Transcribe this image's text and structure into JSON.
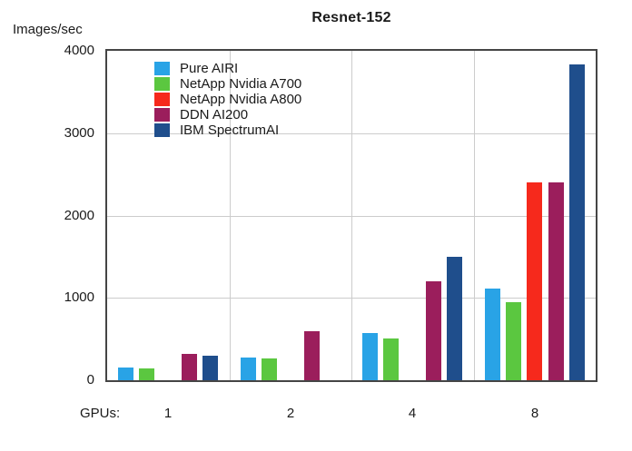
{
  "chart_data": {
    "type": "bar",
    "title": "Resnet-152",
    "ylabel": "Images/sec",
    "xlabel": "GPUs:",
    "categories": [
      "1",
      "2",
      "4",
      "8"
    ],
    "series": [
      {
        "name": "Pure AIRI",
        "color": "#29a3e6",
        "values": [
          150,
          280,
          570,
          1110
        ]
      },
      {
        "name": "NetApp Nvidia A700",
        "color": "#5bc740",
        "values": [
          140,
          260,
          510,
          950
        ]
      },
      {
        "name": "NetApp Nvidia A800",
        "color": "#f6291c",
        "values": [
          null,
          null,
          null,
          2400
        ]
      },
      {
        "name": "DDN AI200",
        "color": "#9b1e5c",
        "values": [
          320,
          600,
          1200,
          2400
        ]
      },
      {
        "name": "IBM SpectrumAI",
        "color": "#1f4e8c",
        "values": [
          300,
          null,
          1500,
          3840
        ]
      }
    ],
    "ylim": [
      0,
      4000
    ],
    "yticks": [
      0,
      1000,
      2000,
      3000,
      4000
    ],
    "grid": true,
    "legend_position": "inside-top-left"
  },
  "colors": {
    "grid": "#cccccc",
    "frame": "#454545",
    "text": "#1a1a1a",
    "background": "#ffffff"
  }
}
